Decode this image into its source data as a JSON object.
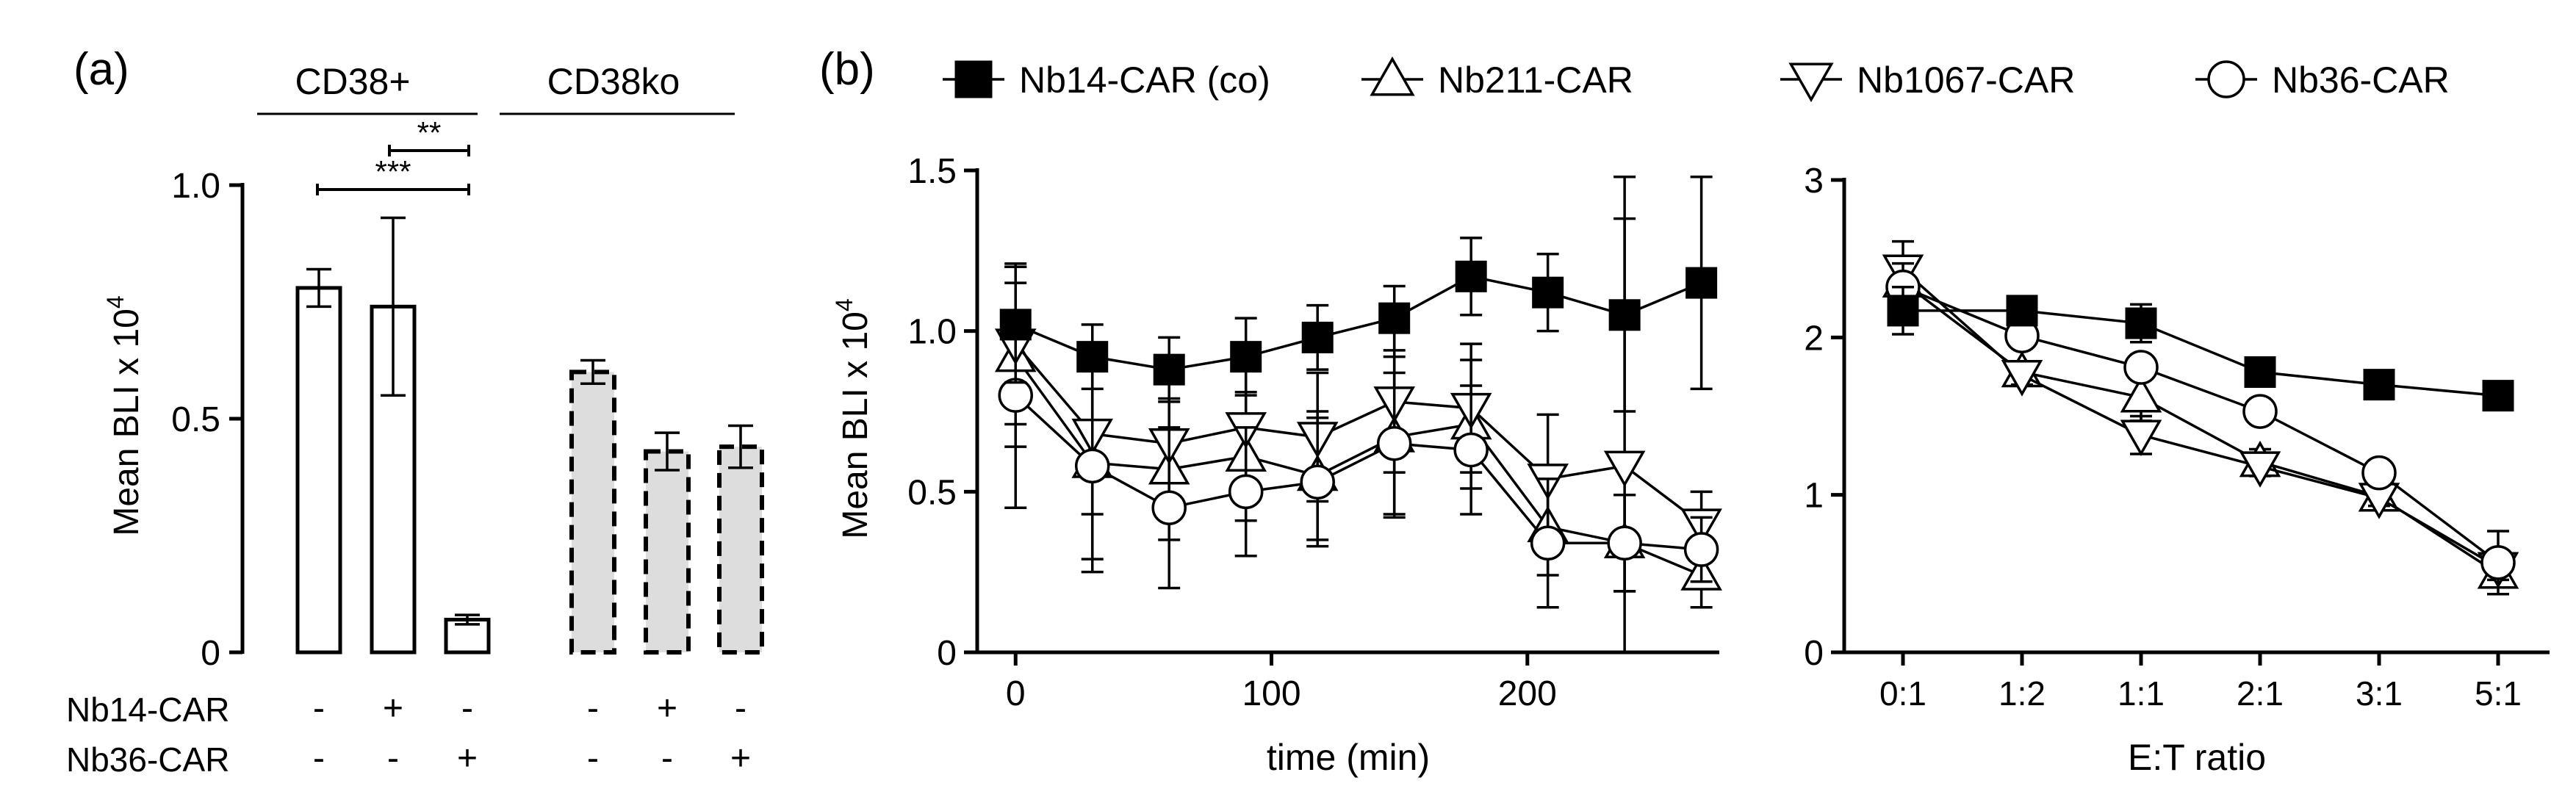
{
  "panel_labels": {
    "a": "(a)",
    "b": "(b)"
  },
  "chart_data": [
    {
      "id": "a",
      "type": "bar",
      "ylabel": "Mean BLI x 10",
      "ylabel_sup": "4",
      "ylim": [
        0,
        1.0
      ],
      "yticks": [
        0,
        0.5,
        1.0
      ],
      "ytick_labels": [
        "0",
        "0.5",
        "1.0"
      ],
      "groups": [
        {
          "label": "CD38+",
          "fill": "#ffffff",
          "dashed": false
        },
        {
          "label": "CD38ko",
          "fill": "#dddddd",
          "dashed": true
        }
      ],
      "bars": [
        {
          "group": 0,
          "value": 0.78,
          "err": 0.04,
          "nb14": "-",
          "nb36": "-"
        },
        {
          "group": 0,
          "value": 0.74,
          "err": 0.19,
          "nb14": "+",
          "nb36": "-"
        },
        {
          "group": 0,
          "value": 0.07,
          "err": 0.01,
          "nb14": "-",
          "nb36": "+"
        },
        {
          "group": 1,
          "value": 0.6,
          "err": 0.025,
          "nb14": "-",
          "nb36": "-"
        },
        {
          "group": 1,
          "value": 0.43,
          "err": 0.04,
          "nb14": "+",
          "nb36": "-"
        },
        {
          "group": 1,
          "value": 0.44,
          "err": 0.045,
          "nb14": "-",
          "nb36": "+"
        }
      ],
      "row_labels": [
        "Nb14-CAR",
        "Nb36-CAR"
      ],
      "significance": [
        {
          "from": 1,
          "to": 2,
          "label": "**"
        },
        {
          "from": 0,
          "to": 2,
          "label": "***"
        }
      ]
    },
    {
      "id": "b1",
      "type": "line",
      "xlabel": "time (min)",
      "ylabel": "Mean BLI x 10",
      "ylabel_sup": "4",
      "xlim": [
        -15,
        275
      ],
      "ylim": [
        0,
        1.5
      ],
      "xticks": [
        0,
        100,
        200
      ],
      "xtick_labels": [
        "0",
        "100",
        "200"
      ],
      "yticks": [
        0,
        0.5,
        1.0,
        1.5
      ],
      "ytick_labels": [
        "0",
        "0.5",
        "1.0",
        "1.5"
      ],
      "x": [
        0,
        30,
        60,
        90,
        118,
        148,
        178,
        208,
        238,
        268
      ],
      "series": [
        {
          "name": "Nb14-CAR (co)",
          "marker": "square",
          "values": [
            1.02,
            0.92,
            0.88,
            0.92,
            0.98,
            1.04,
            1.17,
            1.12,
            1.05,
            1.15
          ],
          "errors": [
            0.18,
            0.1,
            0.1,
            0.12,
            0.1,
            0.1,
            0.12,
            0.12,
            0.3,
            0.33
          ]
        },
        {
          "name": "Nb211-CAR",
          "marker": "triangle-up",
          "values": [
            0.92,
            0.59,
            0.57,
            0.61,
            0.55,
            0.67,
            0.71,
            0.39,
            0.34,
            0.24
          ],
          "errors": [
            0.28,
            0.3,
            0.22,
            0.2,
            0.2,
            0.25,
            0.2,
            0.15,
            0.15,
            0.1
          ]
        },
        {
          "name": "Nb1067-CAR",
          "marker": "triangle-down",
          "values": [
            0.96,
            0.68,
            0.65,
            0.7,
            0.67,
            0.78,
            0.76,
            0.54,
            0.58,
            0.4
          ],
          "errors": [
            0.25,
            0.25,
            0.22,
            0.22,
            0.2,
            0.22,
            0.2,
            0.2,
            0.9,
            0.1
          ]
        },
        {
          "name": "Nb36-CAR",
          "marker": "circle",
          "values": [
            0.8,
            0.58,
            0.45,
            0.5,
            0.53,
            0.65,
            0.63,
            0.34,
            0.34,
            0.32
          ],
          "errors": [
            0.35,
            0.33,
            0.25,
            0.2,
            0.2,
            0.22,
            0.2,
            0.2,
            0.15,
            0.1
          ]
        }
      ],
      "legend_position": "top"
    },
    {
      "id": "b2",
      "type": "line",
      "xlabel": "E:T ratio",
      "ylim": [
        0,
        3
      ],
      "yticks": [
        0,
        1,
        2,
        3
      ],
      "ytick_labels": [
        "0",
        "1",
        "2",
        "3"
      ],
      "categories": [
        "0:1",
        "1:2",
        "1:1",
        "2:1",
        "3:1",
        "5:1"
      ],
      "series": [
        {
          "name": "Nb14-CAR (co)",
          "marker": "square",
          "values": [
            2.17,
            2.17,
            2.09,
            1.78,
            1.7,
            1.63
          ],
          "errors": [
            0.15,
            0.08,
            0.12,
            0.06,
            0.05,
            0.05
          ]
        },
        {
          "name": "Nb211-CAR",
          "marker": "triangle-up",
          "values": [
            2.35,
            1.78,
            1.62,
            1.21,
            0.99,
            0.5
          ],
          "errors": [
            0.1,
            0.06,
            0.15,
            0.08,
            0.05,
            0.05
          ]
        },
        {
          "name": "Nb1067-CAR",
          "marker": "triangle-down",
          "values": [
            2.43,
            1.76,
            1.38,
            1.18,
            0.98,
            0.54
          ],
          "errors": [
            0.18,
            0.06,
            0.12,
            0.06,
            0.05,
            0.08
          ]
        },
        {
          "name": "Nb36-CAR",
          "marker": "circle",
          "values": [
            2.32,
            2.01,
            1.81,
            1.53,
            1.14,
            0.57
          ],
          "errors": [
            0.15,
            0.08,
            0.08,
            0.08,
            0.05,
            0.2
          ]
        }
      ]
    }
  ],
  "colors": {
    "axis": "#000000",
    "ko_fill": "#dddddd",
    "marker_fill": "#ffffff",
    "filled_marker": "#000000"
  }
}
